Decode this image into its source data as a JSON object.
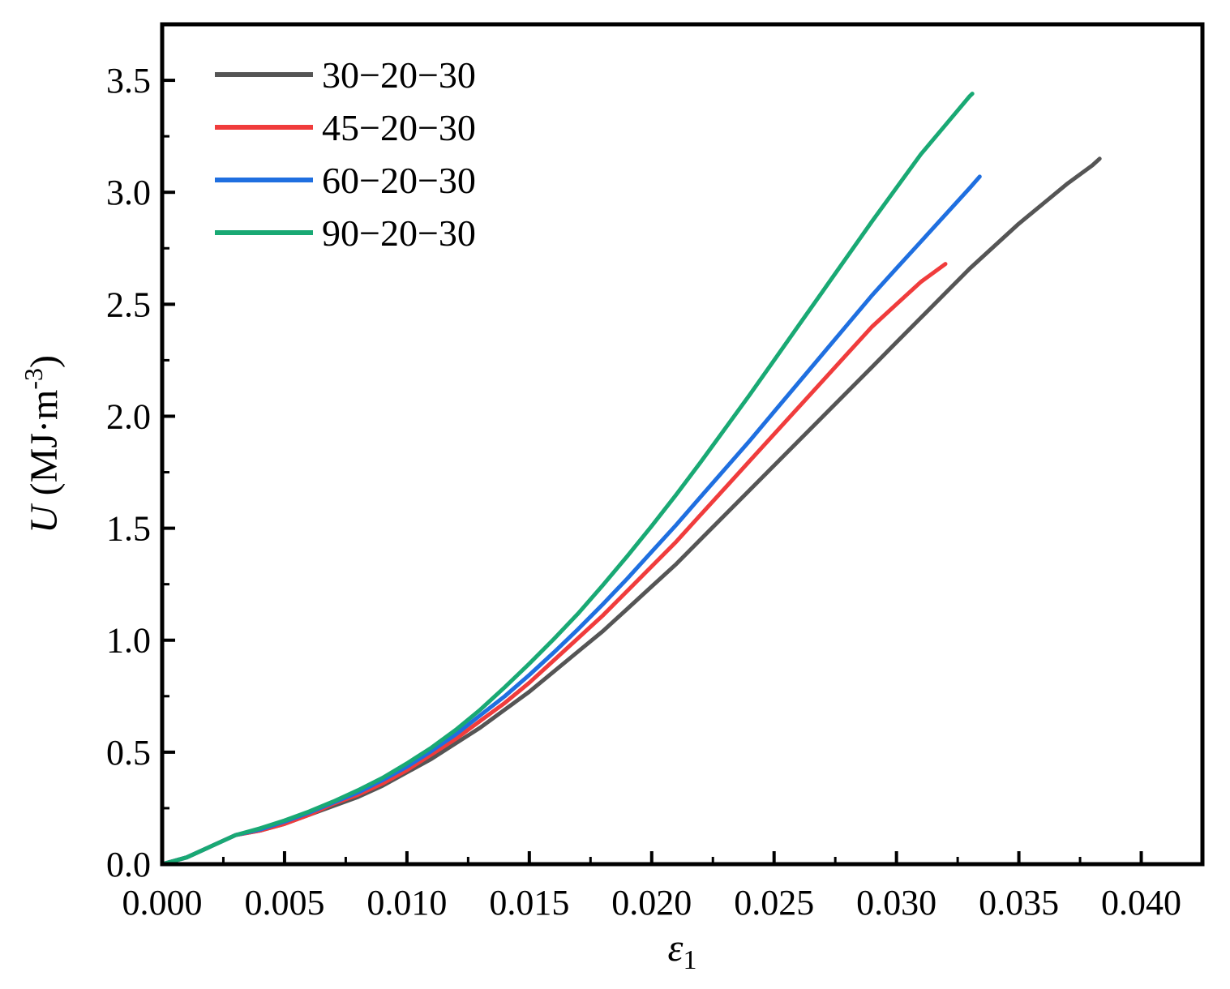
{
  "chart_data": {
    "type": "line",
    "xlabel_symbol": "ε",
    "xlabel_subscript": "1",
    "ylabel_symbol": "U",
    "ylabel_unit": " (MJ·m",
    "ylabel_exp": "-3",
    "ylabel_close": ")",
    "xlim": [
      0.0,
      0.0425
    ],
    "ylim": [
      0.0,
      3.75
    ],
    "xticks": [
      "0.000",
      "0.005",
      "0.010",
      "0.015",
      "0.020",
      "0.025",
      "0.030",
      "0.035",
      "0.040"
    ],
    "xtick_values": [
      0.0,
      0.005,
      0.01,
      0.015,
      0.02,
      0.025,
      0.03,
      0.035,
      0.04
    ],
    "yticks": [
      "0.0",
      "0.5",
      "1.0",
      "1.5",
      "2.0",
      "2.5",
      "3.0",
      "3.5"
    ],
    "ytick_values": [
      0.0,
      0.5,
      1.0,
      1.5,
      2.0,
      2.5,
      3.0,
      3.5
    ],
    "grid": false,
    "legend_position": "top-left",
    "series": [
      {
        "name": "30−20−30",
        "color": "#555555",
        "x": [
          0.0,
          0.001,
          0.002,
          0.003,
          0.004,
          0.005,
          0.006,
          0.007,
          0.008,
          0.009,
          0.01,
          0.011,
          0.012,
          0.013,
          0.014,
          0.015,
          0.016,
          0.017,
          0.018,
          0.019,
          0.02,
          0.021,
          0.022,
          0.023,
          0.024,
          0.025,
          0.026,
          0.027,
          0.028,
          0.029,
          0.03,
          0.031,
          0.032,
          0.033,
          0.034,
          0.035,
          0.036,
          0.037,
          0.038,
          0.0383
        ],
        "y": [
          0.0,
          0.03,
          0.08,
          0.13,
          0.15,
          0.18,
          0.22,
          0.26,
          0.3,
          0.35,
          0.41,
          0.47,
          0.54,
          0.61,
          0.69,
          0.77,
          0.86,
          0.95,
          1.04,
          1.14,
          1.24,
          1.34,
          1.45,
          1.56,
          1.67,
          1.78,
          1.89,
          2.0,
          2.11,
          2.22,
          2.33,
          2.44,
          2.55,
          2.66,
          2.76,
          2.86,
          2.95,
          3.04,
          3.12,
          3.15
        ]
      },
      {
        "name": "45−20−30",
        "color": "#f03c3c",
        "x": [
          0.0,
          0.001,
          0.002,
          0.003,
          0.004,
          0.005,
          0.006,
          0.007,
          0.008,
          0.009,
          0.01,
          0.011,
          0.012,
          0.013,
          0.014,
          0.015,
          0.016,
          0.017,
          0.018,
          0.019,
          0.02,
          0.021,
          0.022,
          0.023,
          0.024,
          0.025,
          0.026,
          0.027,
          0.028,
          0.029,
          0.03,
          0.031,
          0.032
        ],
        "y": [
          0.0,
          0.03,
          0.08,
          0.13,
          0.15,
          0.18,
          0.22,
          0.27,
          0.31,
          0.36,
          0.42,
          0.49,
          0.56,
          0.64,
          0.72,
          0.81,
          0.91,
          1.01,
          1.11,
          1.22,
          1.33,
          1.44,
          1.56,
          1.68,
          1.8,
          1.92,
          2.04,
          2.16,
          2.28,
          2.4,
          2.5,
          2.6,
          2.68
        ]
      },
      {
        "name": "60−20−30",
        "color": "#1f6fe0",
        "x": [
          0.0,
          0.001,
          0.002,
          0.003,
          0.004,
          0.005,
          0.006,
          0.007,
          0.008,
          0.009,
          0.01,
          0.011,
          0.012,
          0.013,
          0.014,
          0.015,
          0.016,
          0.017,
          0.018,
          0.019,
          0.02,
          0.021,
          0.022,
          0.023,
          0.024,
          0.025,
          0.026,
          0.027,
          0.028,
          0.029,
          0.03,
          0.031,
          0.032,
          0.033,
          0.0334
        ],
        "y": [
          0.0,
          0.03,
          0.08,
          0.13,
          0.155,
          0.19,
          0.23,
          0.275,
          0.32,
          0.375,
          0.435,
          0.505,
          0.58,
          0.665,
          0.75,
          0.845,
          0.945,
          1.05,
          1.16,
          1.275,
          1.395,
          1.515,
          1.64,
          1.765,
          1.89,
          2.02,
          2.15,
          2.28,
          2.41,
          2.54,
          2.66,
          2.78,
          2.9,
          3.02,
          3.07
        ]
      },
      {
        "name": "90−20−30",
        "color": "#19a974",
        "x": [
          0.0,
          0.001,
          0.002,
          0.003,
          0.004,
          0.005,
          0.006,
          0.007,
          0.008,
          0.009,
          0.01,
          0.011,
          0.012,
          0.013,
          0.014,
          0.015,
          0.016,
          0.017,
          0.018,
          0.019,
          0.02,
          0.021,
          0.022,
          0.023,
          0.024,
          0.025,
          0.026,
          0.027,
          0.028,
          0.029,
          0.03,
          0.031,
          0.032,
          0.033,
          0.0331
        ],
        "y": [
          0.0,
          0.03,
          0.08,
          0.13,
          0.16,
          0.195,
          0.235,
          0.28,
          0.33,
          0.385,
          0.45,
          0.52,
          0.6,
          0.69,
          0.79,
          0.895,
          1.005,
          1.12,
          1.245,
          1.375,
          1.51,
          1.65,
          1.795,
          1.945,
          2.095,
          2.25,
          2.405,
          2.56,
          2.715,
          2.87,
          3.02,
          3.17,
          3.3,
          3.43,
          3.44
        ]
      }
    ]
  }
}
